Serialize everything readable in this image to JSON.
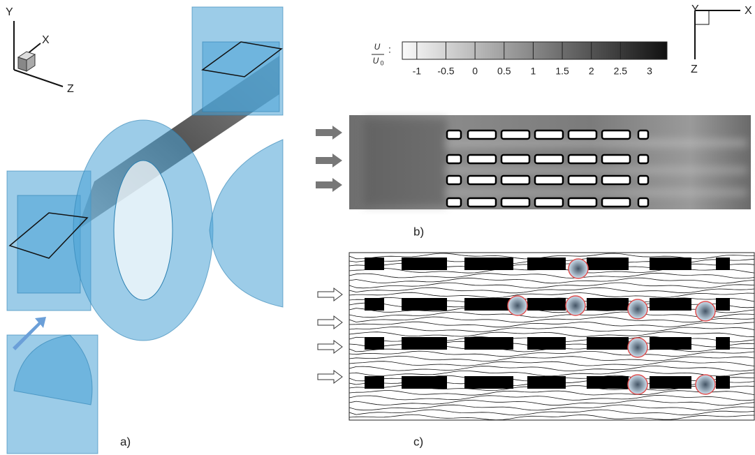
{
  "panel_a": {
    "label": "a)",
    "axes": {
      "y": "Y",
      "x": "X",
      "z": "Z"
    }
  },
  "panel_b": {
    "label": "b)",
    "axes": {
      "y": "Y",
      "x": "X",
      "z": "Z"
    },
    "colorbar": {
      "numerator": "U",
      "denominator": "U",
      "subscript": "0",
      "separator": ":",
      "range": [
        -1.25,
        3.3
      ],
      "ticks": [
        -1,
        -0.5,
        0,
        0.5,
        1,
        1.5,
        2,
        2.5,
        3
      ]
    }
  },
  "panel_c": {
    "label": "c)"
  }
}
